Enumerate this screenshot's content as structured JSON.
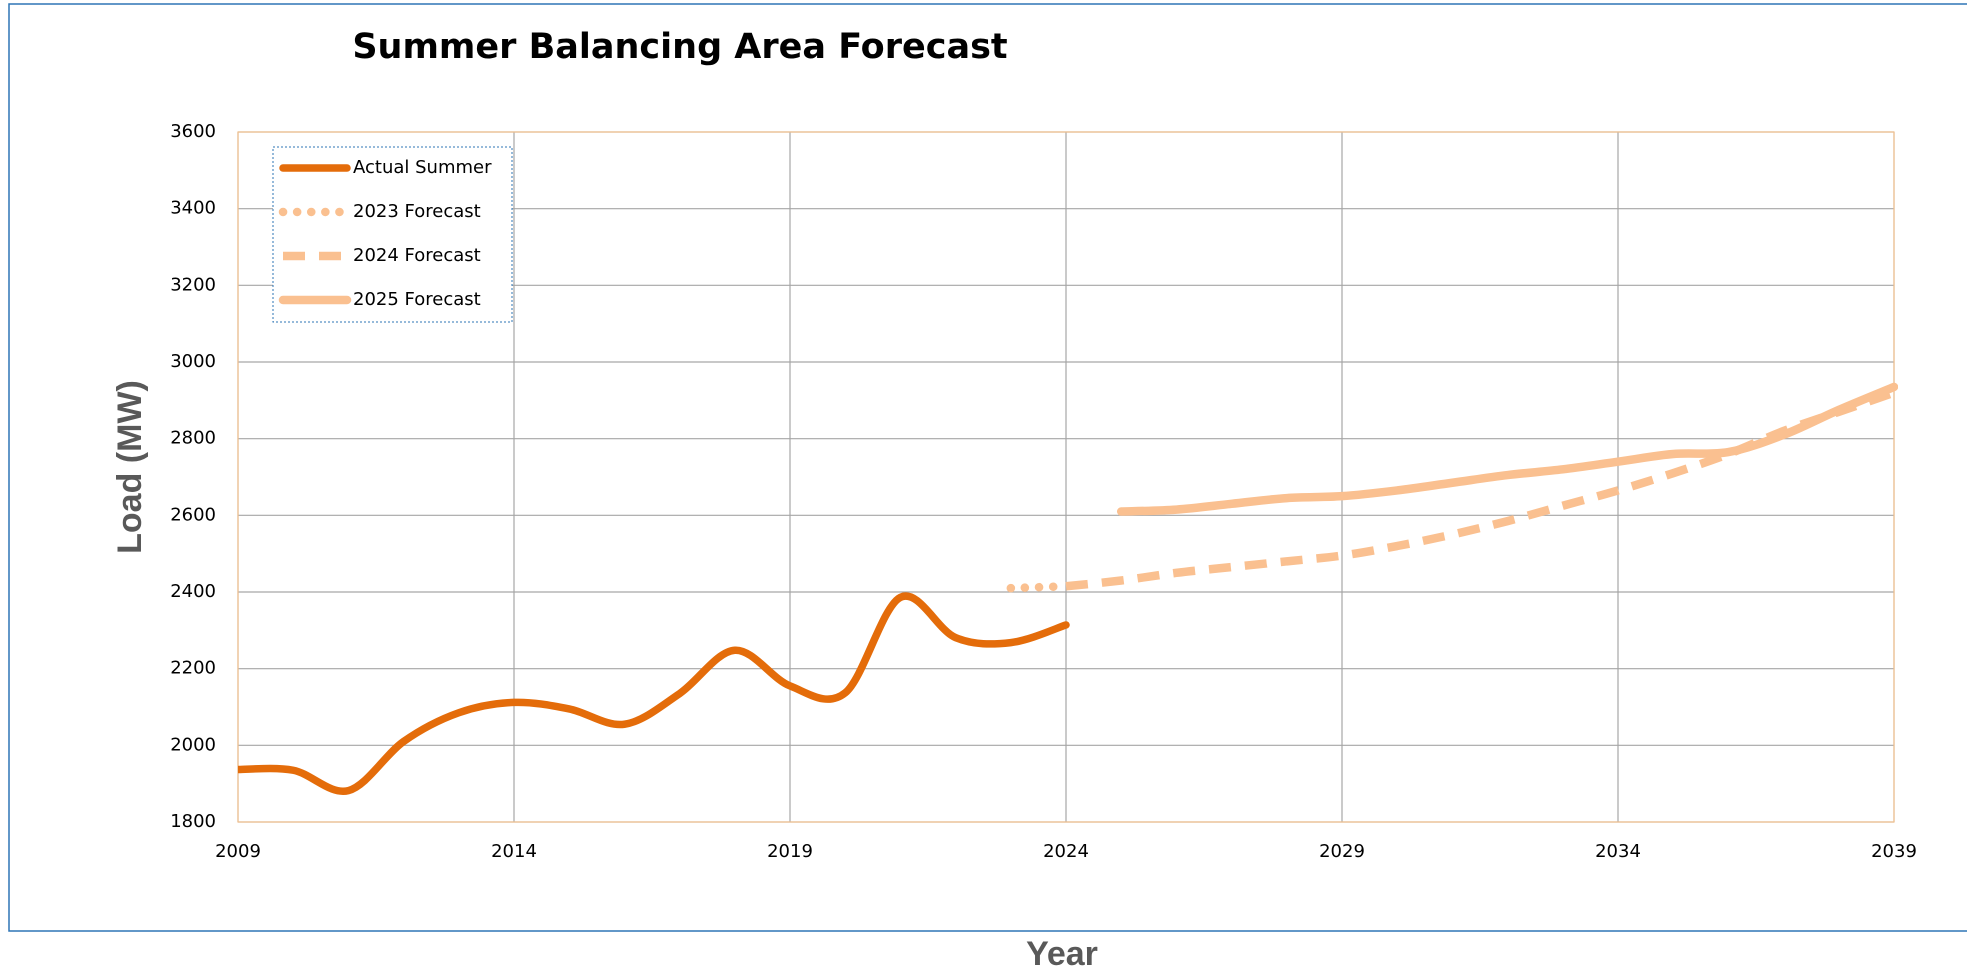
{
  "chart_data": {
    "type": "line",
    "title": "Summer Balancing Area Forecast",
    "x_label": "Year",
    "y_label": "Load (MW)",
    "x": [
      2009,
      2010,
      2011,
      2012,
      2013,
      2014,
      2015,
      2016,
      2017,
      2018,
      2019,
      2020,
      2021,
      2022,
      2023,
      2024,
      2025,
      2026,
      2027,
      2028,
      2029,
      2030,
      2031,
      2032,
      2033,
      2034,
      2035,
      2036,
      2037,
      2038,
      2039
    ],
    "series": [
      {
        "name": "Actual Summer",
        "color": "#e46c0a",
        "style": "solid",
        "values": [
          1937,
          1935,
          1882,
          2010,
          2085,
          2112,
          2095,
          2055,
          2135,
          2248,
          2155,
          2137,
          2386,
          2281,
          2268,
          2314,
          null,
          null,
          null,
          null,
          null,
          null,
          null,
          null,
          null,
          null,
          null,
          null,
          null,
          null,
          null
        ]
      },
      {
        "name": "2023 Forecast",
        "color": "#fac090",
        "style": "dotted",
        "values": [
          null,
          null,
          null,
          null,
          null,
          null,
          null,
          null,
          null,
          null,
          null,
          null,
          null,
          null,
          2410,
          2415,
          null,
          null,
          null,
          null,
          null,
          null,
          null,
          null,
          null,
          null,
          null,
          null,
          null,
          null,
          null
        ]
      },
      {
        "name": "2024 Forecast",
        "color": "#fac090",
        "style": "dashed",
        "values": [
          null,
          null,
          null,
          null,
          null,
          null,
          null,
          null,
          null,
          null,
          null,
          null,
          null,
          null,
          null,
          2415,
          2430,
          2450,
          2465,
          2480,
          2495,
          2520,
          2550,
          2585,
          2625,
          2665,
          2710,
          2760,
          2820,
          2870,
          2920
        ]
      },
      {
        "name": "2025 Forecast",
        "color": "#fac090",
        "style": "solid",
        "values": [
          null,
          null,
          null,
          null,
          null,
          null,
          null,
          null,
          null,
          null,
          null,
          null,
          null,
          null,
          null,
          null,
          2610,
          2615,
          2630,
          2645,
          2650,
          2665,
          2685,
          2705,
          2720,
          2740,
          2760,
          2765,
          2810,
          2875,
          2935
        ]
      }
    ],
    "xlim": [
      2009,
      2039
    ],
    "xticks": [
      2009,
      2014,
      2019,
      2024,
      2029,
      2034,
      2039
    ],
    "ylim": [
      1800,
      3600
    ],
    "yticks": [
      1800,
      2000,
      2200,
      2400,
      2600,
      2800,
      3000,
      3200,
      3400,
      3600
    ],
    "grid": true,
    "legend": "upper left"
  }
}
